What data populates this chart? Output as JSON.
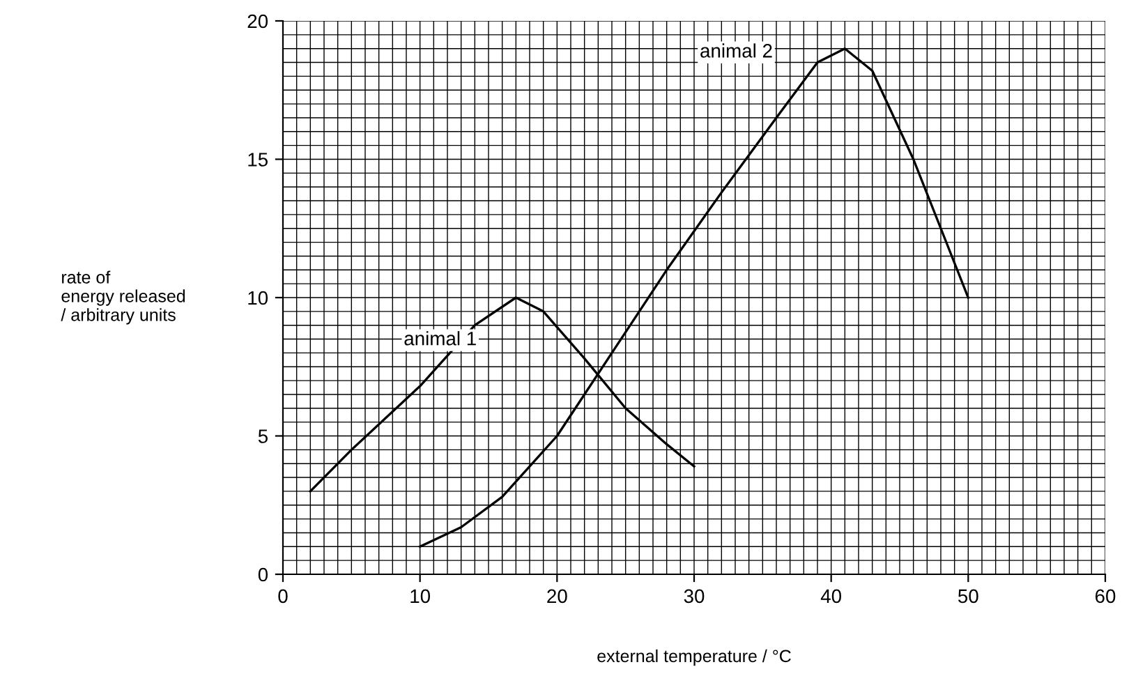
{
  "chart_data": {
    "type": "line",
    "xlabel": "external temperature / °C",
    "ylabel": "rate of\nenergy released\n/ arbitrary units",
    "xlim": [
      0,
      60
    ],
    "ylim": [
      0,
      20
    ],
    "xticks": [
      0,
      10,
      20,
      30,
      40,
      50,
      60
    ],
    "yticks": [
      0,
      5,
      10,
      15,
      20
    ],
    "grid": true,
    "marker": "none",
    "line_style": "solid",
    "series": [
      {
        "name": "animal 1",
        "color": "#000000",
        "x": [
          2,
          5,
          10,
          14,
          17,
          19,
          22,
          25,
          28,
          30
        ],
        "values": [
          3,
          4.5,
          6.8,
          9,
          10,
          9.5,
          7.8,
          6,
          4.7,
          3.9
        ]
      },
      {
        "name": "animal 2",
        "color": "#000000",
        "x": [
          10,
          13,
          16,
          20,
          24,
          28,
          32,
          36,
          39,
          41,
          43,
          46,
          48,
          50
        ],
        "values": [
          1,
          1.7,
          2.8,
          5,
          8,
          11,
          13.8,
          16.5,
          18.5,
          19,
          18.2,
          15,
          12.5,
          10
        ]
      }
    ]
  }
}
